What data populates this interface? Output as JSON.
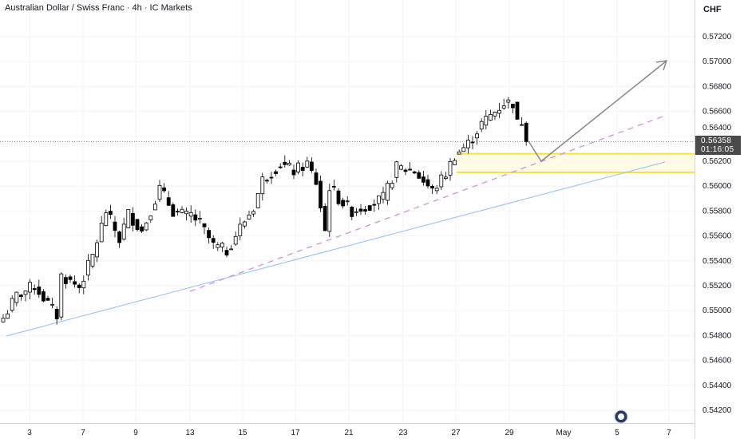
{
  "title": "Australian Dollar / Swiss Franc · 4h · IC Markets",
  "currency": "CHF",
  "last_price": "0.56358",
  "countdown": "01:16:05",
  "colors": {
    "up_fill": "#ffffff",
    "down_fill": "#000000",
    "trend_solid": "#90bff9",
    "trend_dashed": "#ce93d8",
    "zone": "#fff59d",
    "arrow": "#888888"
  },
  "price_axis": [
    "0.57200",
    "0.57000",
    "0.56800",
    "0.56600",
    "0.56400",
    "0.56200",
    "0.56000",
    "0.55800",
    "0.55600",
    "0.55400",
    "0.55200",
    "0.55000",
    "0.54800",
    "0.54600",
    "0.54400",
    "0.54200"
  ],
  "time_axis": [
    "3",
    "7",
    "9",
    "13",
    "15",
    "17",
    "21",
    "23",
    "27",
    "29",
    "May",
    "5",
    "7"
  ],
  "chart_data": {
    "type": "candlestick",
    "price_range": [
      0.542,
      0.572
    ],
    "waypoints": [
      [
        0,
        0.5494
      ],
      [
        3,
        0.5512
      ],
      [
        7,
        0.552
      ],
      [
        12,
        0.5496
      ],
      [
        13,
        0.5528
      ],
      [
        17,
        0.5519
      ],
      [
        20,
        0.5544
      ],
      [
        23,
        0.558
      ],
      [
        26,
        0.5557
      ],
      [
        28,
        0.5578
      ],
      [
        31,
        0.5564
      ],
      [
        35,
        0.5598
      ],
      [
        38,
        0.558
      ],
      [
        41,
        0.5576
      ],
      [
        42,
        0.5577
      ],
      [
        44,
        0.557
      ],
      [
        47,
        0.5552
      ],
      [
        50,
        0.5548
      ],
      [
        53,
        0.5567
      ],
      [
        56,
        0.5583
      ],
      [
        58,
        0.5605
      ],
      [
        62,
        0.5618
      ],
      [
        65,
        0.5612
      ],
      [
        68,
        0.5618
      ],
      [
        70,
        0.5603
      ],
      [
        72,
        0.5564
      ],
      [
        73,
        0.56
      ],
      [
        75,
        0.559
      ],
      [
        78,
        0.558
      ],
      [
        81,
        0.5584
      ],
      [
        85,
        0.559
      ],
      [
        88,
        0.5615
      ],
      [
        92,
        0.5612
      ],
      [
        96,
        0.5596
      ],
      [
        99,
        0.561
      ],
      [
        101,
        0.5625
      ],
      [
        104,
        0.5634
      ],
      [
        107,
        0.565
      ],
      [
        110,
        0.566
      ],
      [
        112,
        0.5667
      ],
      [
        114,
        0.5667
      ],
      [
        115,
        0.565
      ],
      [
        116,
        0.5652
      ],
      [
        117,
        0.56358
      ]
    ],
    "zone": [
      0.5611,
      0.5626
    ],
    "last": 0.56358
  }
}
